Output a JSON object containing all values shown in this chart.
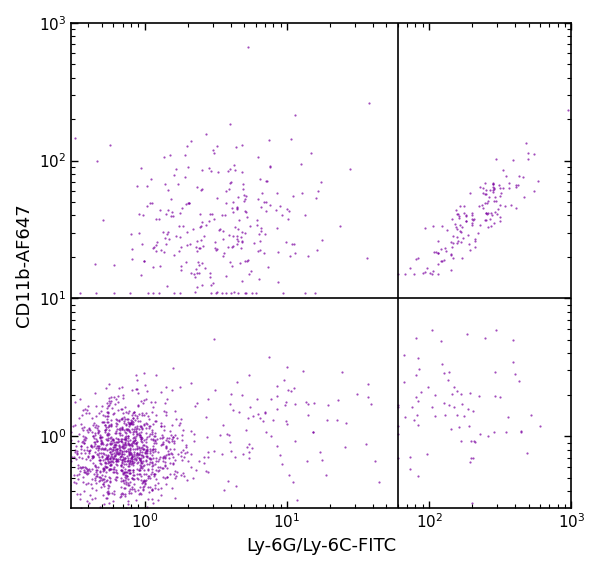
{
  "dot_color": "#7B00A0",
  "dot_alpha": 0.7,
  "dot_size": 2.5,
  "xlabel": "Ly-6G/Ly-6C-FITC",
  "ylabel": "CD11b-AF647",
  "xlim_log": [
    -0.52,
    3
  ],
  "ylim_log": [
    -0.52,
    3
  ],
  "xline": 60,
  "yline": 10,
  "seed": 42,
  "background_color": "#ffffff",
  "axis_color": "#000000",
  "tick_label_size": 11,
  "label_size": 13
}
